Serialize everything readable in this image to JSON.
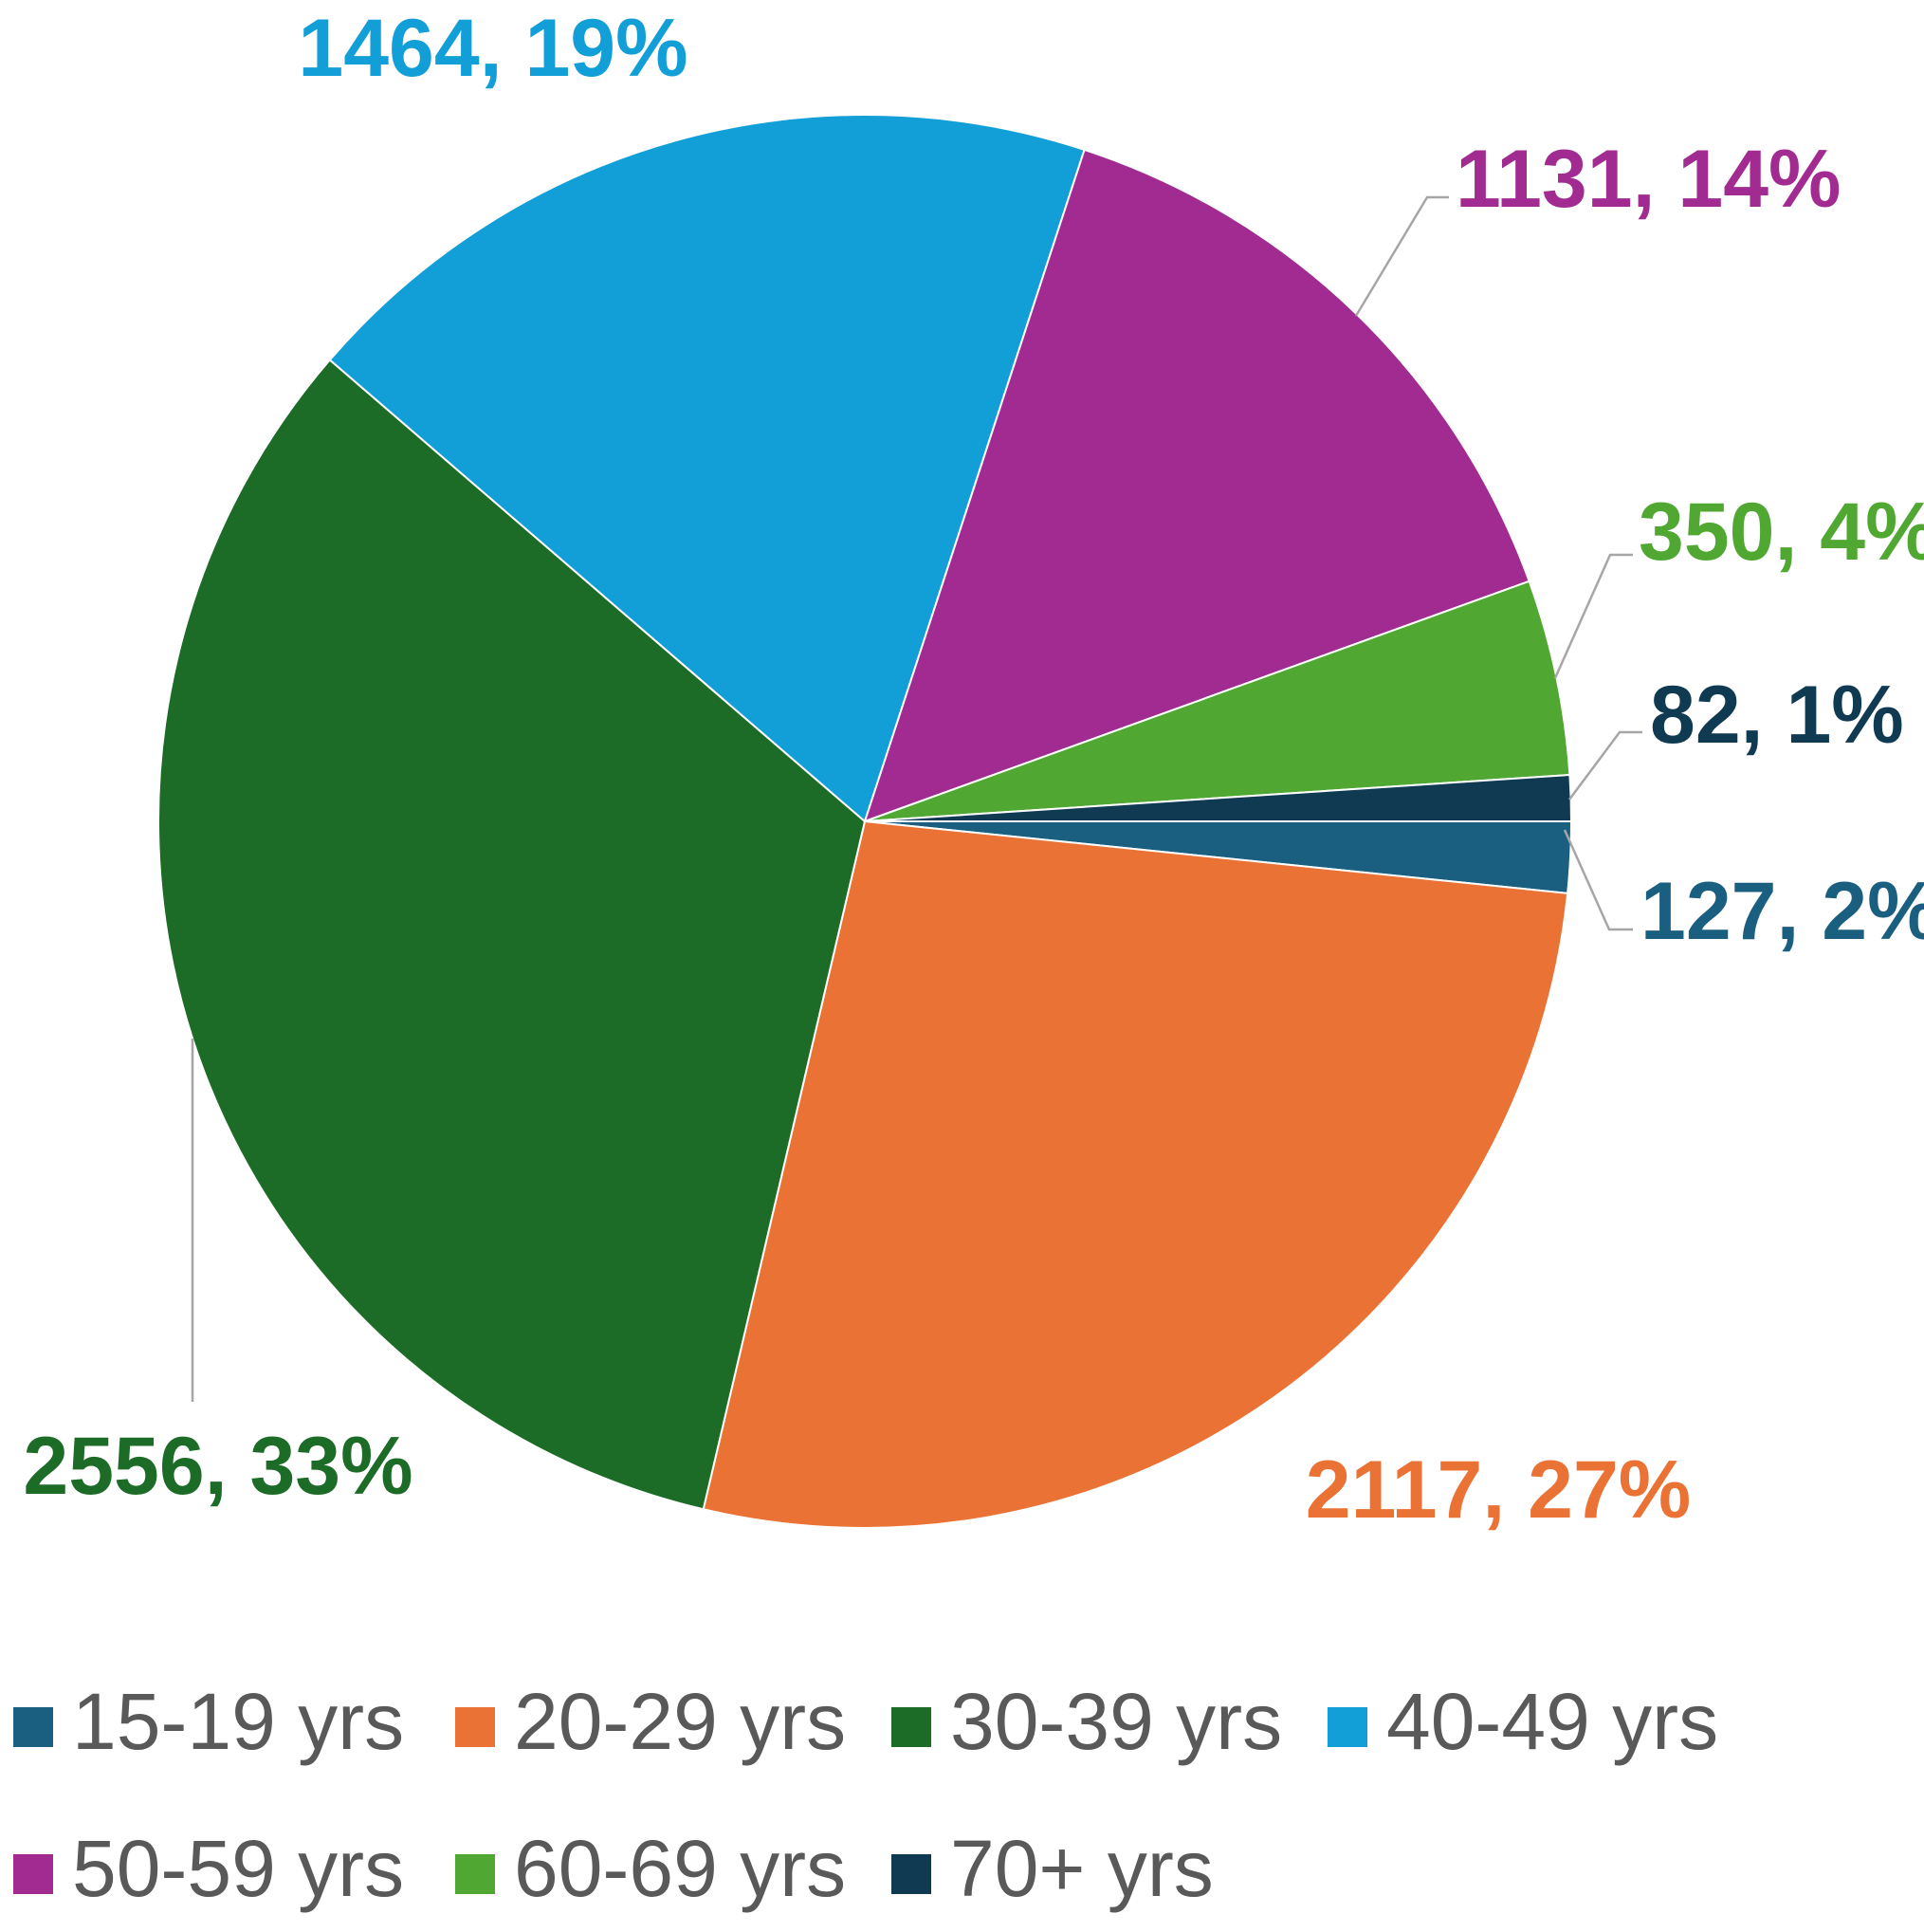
{
  "chart_data": {
    "type": "pie",
    "title": "",
    "categories": [
      "15-19 yrs",
      "20-29 yrs",
      "30-39 yrs",
      "40-49 yrs",
      "50-59 yrs",
      "60-69 yrs",
      "70+ yrs"
    ],
    "values": [
      127,
      2117,
      2556,
      1464,
      1131,
      350,
      82
    ],
    "percentages": [
      "2%",
      "27%",
      "33%",
      "19%",
      "14%",
      "4%",
      "1%"
    ],
    "data_labels": [
      "127, 2%",
      "2117, 27%",
      "2556, 33%",
      "1464, 19%",
      "1131, 14%",
      "350, 4%",
      "82, 1%"
    ],
    "colors": [
      "#1a5e80",
      "#e97234",
      "#1c6b26",
      "#129ed6",
      "#a12b91",
      "#50a832",
      "#0f3a52"
    ],
    "direction": "clockwise",
    "start_angle": "3 o'clock",
    "legend_position": "bottom"
  }
}
